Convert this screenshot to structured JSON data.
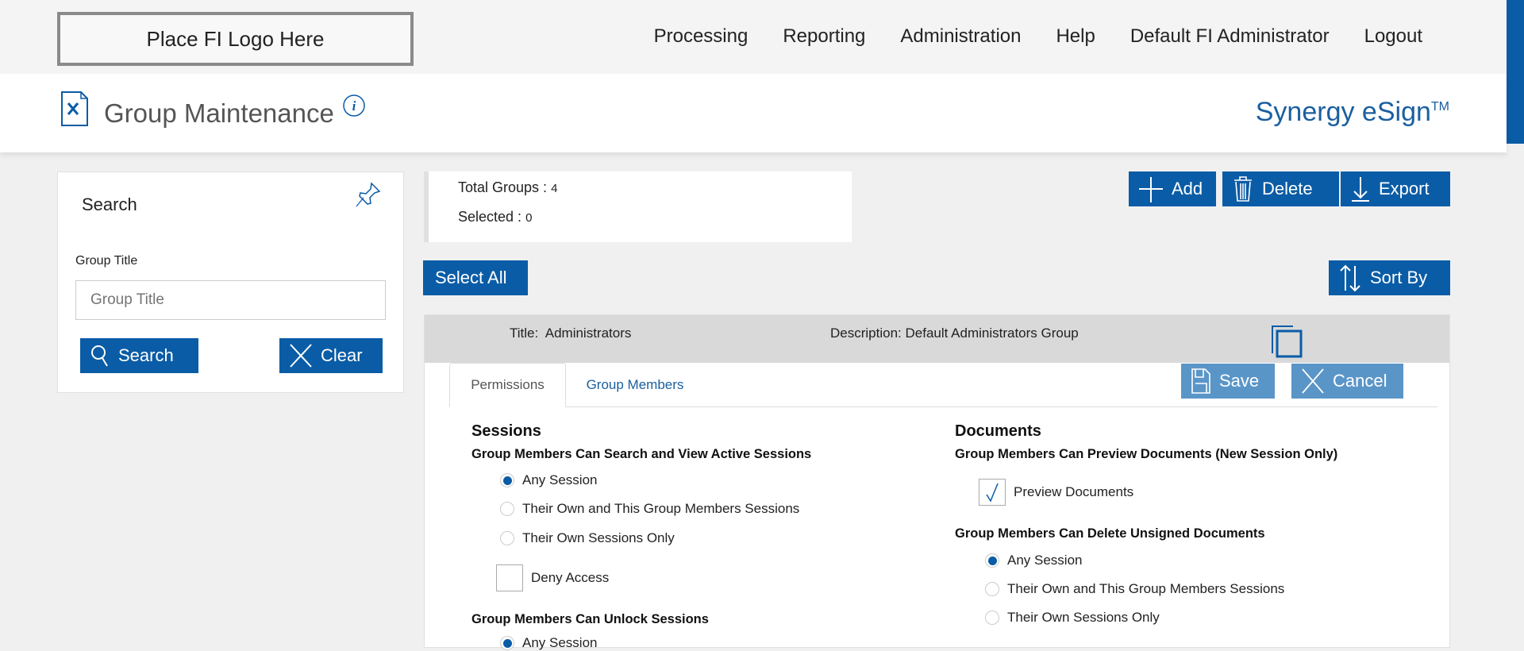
{
  "logo": {
    "text": "Place FI Logo Here"
  },
  "nav": [
    "Processing",
    "Reporting",
    "Administration",
    "Help",
    "Default FI Administrator",
    "Logout"
  ],
  "header": {
    "title": "Group Maintenance",
    "brand": "Synergy eSign",
    "brand_mark": "TM"
  },
  "search": {
    "title": "Search",
    "field_label": "Group Title",
    "placeholder": "Group Title",
    "search_label": "Search",
    "clear_label": "Clear"
  },
  "stats": {
    "total_label": "Total Groups : ",
    "total": "4",
    "selected_label": "Selected : ",
    "selected": "0"
  },
  "toolbar": {
    "add": "Add",
    "delete": "Delete",
    "export": "Export",
    "select_all": "Select All",
    "sort_by": "Sort By"
  },
  "group": {
    "title_label": "Title:",
    "title": "Administrators",
    "description_label": "Description:",
    "description": "Default Administrators Group"
  },
  "tabs": [
    "Permissions",
    "Group Members"
  ],
  "actions": {
    "save": "Save",
    "cancel": "Cancel"
  },
  "sessions": {
    "heading": "Sessions",
    "view_heading": "Group Members Can Search and View Active Sessions",
    "view_options": [
      "Any Session",
      "Their Own and This Group Members Sessions",
      "Their Own Sessions Only"
    ],
    "view_selected": 0,
    "deny_label": "Deny Access",
    "deny_checked": false,
    "unlock_heading": "Group Members Can Unlock Sessions",
    "unlock_options": [
      "Any Session"
    ],
    "unlock_selected": 0
  },
  "documents": {
    "heading": "Documents",
    "preview_heading": "Group Members Can Preview Documents (New Session Only)",
    "preview_label": "Preview Documents",
    "preview_checked": true,
    "delete_heading": "Group Members Can Delete Unsigned Documents",
    "delete_options": [
      "Any Session",
      "Their Own and This Group Members Sessions",
      "Their Own Sessions Only"
    ],
    "delete_selected": 0
  },
  "colors": {
    "accent": "#0a5ca6",
    "accent_light": "#5a95c8",
    "brand": "#1a5fa0"
  }
}
